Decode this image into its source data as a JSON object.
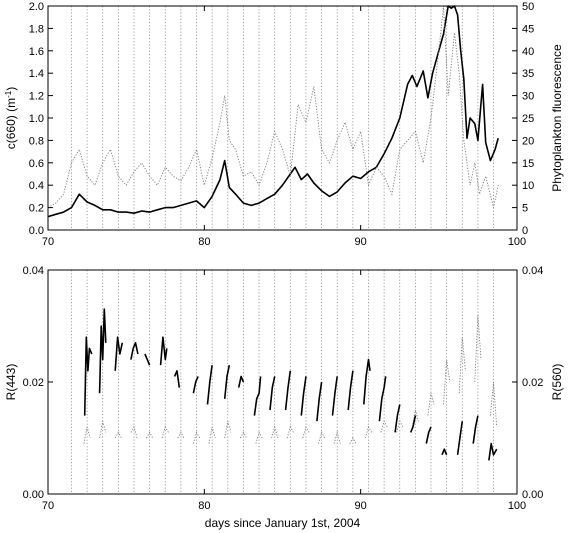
{
  "chart_data": [
    {
      "type": "line",
      "x_label": "",
      "y_label": "c(660) (m",
      "y_label_sup": "-1",
      "y_label_suffix": ")",
      "y2_label": "Phytoplankton fluorescence",
      "xlim": [
        70,
        100
      ],
      "ylim": [
        0,
        2
      ],
      "y2lim": [
        0,
        50
      ],
      "x_ticks": [
        70,
        80,
        90,
        100
      ],
      "y_ticks": [
        "0.0",
        "0.2",
        "0.4",
        "0.6",
        "0.8",
        "1.0",
        "1.2",
        "1.4",
        "1.6",
        "1.8",
        "2.0"
      ],
      "y2_ticks": [
        0,
        5,
        10,
        15,
        20,
        25,
        30,
        35,
        40,
        45,
        50
      ],
      "day_lines": [
        71.5,
        72.5,
        73.5,
        74.5,
        75.5,
        76.5,
        77.5,
        78.5,
        79.5,
        80.5,
        81.5,
        82.5,
        83.5,
        84.5,
        85.5,
        86.5,
        87.5,
        88.5,
        89.5,
        90.5,
        91.5,
        92.5,
        93.5,
        94.5,
        95.5,
        96.5,
        97.5,
        98.5
      ],
      "series": [
        {
          "axis": "left",
          "style": "solid",
          "x": [
            70.0,
            70.5,
            71.0,
            71.5,
            72.0,
            72.5,
            73.0,
            73.5,
            74.0,
            74.5,
            75.0,
            75.5,
            76.0,
            76.5,
            77.0,
            77.5,
            78.0,
            78.5,
            79.0,
            79.5,
            80.0,
            80.5,
            81.0,
            81.3,
            81.6,
            82.0,
            82.5,
            83.0,
            83.5,
            84.0,
            84.5,
            85.0,
            85.5,
            85.8,
            86.2,
            86.6,
            87.0,
            87.5,
            88.0,
            88.5,
            89.0,
            89.5,
            90.0,
            90.5,
            91.0,
            91.5,
            92.0,
            92.5,
            93.0,
            93.3,
            93.6,
            94.0,
            94.3,
            94.6,
            95.0,
            95.3,
            95.6,
            95.8,
            96.0,
            96.2,
            96.4,
            96.6,
            96.8,
            97.0,
            97.3,
            97.5,
            97.8,
            98.0,
            98.3,
            98.6,
            98.8
          ],
          "y": [
            0.12,
            0.14,
            0.16,
            0.2,
            0.32,
            0.25,
            0.22,
            0.18,
            0.18,
            0.16,
            0.16,
            0.15,
            0.17,
            0.16,
            0.18,
            0.2,
            0.2,
            0.22,
            0.24,
            0.26,
            0.2,
            0.3,
            0.45,
            0.62,
            0.38,
            0.32,
            0.24,
            0.22,
            0.24,
            0.28,
            0.32,
            0.4,
            0.5,
            0.56,
            0.45,
            0.5,
            0.42,
            0.35,
            0.3,
            0.34,
            0.42,
            0.48,
            0.46,
            0.52,
            0.56,
            0.68,
            0.82,
            1.0,
            1.3,
            1.38,
            1.28,
            1.42,
            1.18,
            1.4,
            1.6,
            1.75,
            2.0,
            1.98,
            2.0,
            1.92,
            1.6,
            1.35,
            0.82,
            1.0,
            0.95,
            0.8,
            1.3,
            0.78,
            0.62,
            0.72,
            0.82
          ]
        },
        {
          "axis": "right",
          "style": "dotted",
          "x": [
            70.0,
            70.5,
            71.0,
            71.5,
            72.0,
            72.5,
            73.0,
            73.5,
            74.0,
            74.5,
            75.0,
            75.5,
            76.0,
            76.5,
            77.0,
            77.5,
            78.0,
            78.5,
            79.0,
            79.5,
            80.0,
            80.5,
            81.0,
            81.3,
            81.6,
            82.0,
            82.5,
            83.0,
            83.5,
            84.0,
            84.5,
            85.0,
            85.5,
            86.0,
            86.5,
            87.0,
            87.5,
            88.0,
            88.5,
            89.0,
            89.5,
            90.0,
            90.5,
            91.0,
            91.5,
            92.0,
            92.5,
            93.0,
            93.5,
            94.0,
            94.5,
            95.0,
            95.3,
            95.6,
            96.0,
            96.3,
            96.6,
            97.0,
            97.3,
            97.6,
            98.0,
            98.5,
            98.8
          ],
          "y": [
            5,
            6,
            8,
            15,
            18,
            12,
            10,
            15,
            18,
            12,
            10,
            13,
            15,
            12,
            10,
            14,
            12,
            11,
            14,
            18,
            10,
            16,
            24,
            30,
            20,
            18,
            12,
            13,
            10,
            15,
            22,
            18,
            12,
            28,
            24,
            32,
            18,
            15,
            20,
            24,
            18,
            22,
            10,
            14,
            12,
            8,
            18,
            20,
            22,
            15,
            25,
            40,
            50,
            30,
            44,
            35,
            20,
            10,
            15,
            8,
            12,
            5,
            10
          ]
        }
      ]
    },
    {
      "type": "line",
      "x_label": "days since January 1st, 2004",
      "y_label": "R(443)",
      "y2_label": "R(560)",
      "xlim": [
        70,
        100
      ],
      "ylim": [
        0,
        0.04
      ],
      "y2lim": [
        0,
        0.04
      ],
      "x_ticks": [
        70,
        80,
        90,
        100
      ],
      "y_ticks": [
        "0.00",
        "0.02",
        "0.04"
      ],
      "y2_ticks": [
        "0.00",
        "0.02",
        "0.04"
      ],
      "day_lines": [
        71.5,
        72.5,
        73.5,
        74.5,
        75.5,
        76.5,
        77.5,
        78.5,
        79.5,
        80.5,
        81.5,
        82.5,
        83.5,
        84.5,
        85.5,
        86.5,
        87.5,
        88.5,
        89.5,
        90.5,
        91.5,
        92.5,
        93.5,
        94.5,
        95.5,
        96.5,
        97.5,
        98.5
      ],
      "segments_solid": [
        {
          "x": [
            72.35,
            72.45,
            72.55,
            72.65,
            72.8
          ],
          "y": [
            0.014,
            0.028,
            0.022,
            0.026,
            0.025
          ]
        },
        {
          "x": [
            73.3,
            73.4,
            73.5,
            73.6,
            73.7
          ],
          "y": [
            0.018,
            0.03,
            0.024,
            0.033,
            0.027
          ]
        },
        {
          "x": [
            74.3,
            74.45,
            74.6,
            74.75
          ],
          "y": [
            0.022,
            0.028,
            0.025,
            0.027
          ]
        },
        {
          "x": [
            75.3,
            75.45,
            75.6,
            75.75
          ],
          "y": [
            0.024,
            0.026,
            0.027,
            0.025
          ]
        },
        {
          "x": [
            76.2,
            76.35,
            76.5
          ],
          "y": [
            0.025,
            0.024,
            0.023
          ]
        },
        {
          "x": [
            77.2,
            77.35,
            77.5,
            77.6
          ],
          "y": [
            0.023,
            0.028,
            0.024,
            0.026
          ]
        },
        {
          "x": [
            78.1,
            78.25,
            78.4
          ],
          "y": [
            0.021,
            0.022,
            0.019
          ]
        },
        {
          "x": [
            79.3,
            79.45,
            79.6
          ],
          "y": [
            0.018,
            0.02,
            0.021
          ]
        },
        {
          "x": [
            80.2,
            80.35,
            80.5
          ],
          "y": [
            0.016,
            0.02,
            0.023
          ]
        },
        {
          "x": [
            81.3,
            81.45,
            81.6
          ],
          "y": [
            0.017,
            0.021,
            0.023
          ]
        },
        {
          "x": [
            82.2,
            82.35,
            82.5
          ],
          "y": [
            0.019,
            0.021,
            0.02
          ]
        },
        {
          "x": [
            83.2,
            83.35,
            83.5,
            83.6
          ],
          "y": [
            0.014,
            0.017,
            0.018,
            0.021
          ]
        },
        {
          "x": [
            84.2,
            84.35,
            84.5
          ],
          "y": [
            0.015,
            0.019,
            0.021
          ]
        },
        {
          "x": [
            85.2,
            85.35,
            85.5
          ],
          "y": [
            0.015,
            0.019,
            0.022
          ]
        },
        {
          "x": [
            86.2,
            86.35,
            86.5
          ],
          "y": [
            0.014,
            0.018,
            0.021
          ]
        },
        {
          "x": [
            87.2,
            87.35,
            87.5
          ],
          "y": [
            0.013,
            0.017,
            0.02
          ]
        },
        {
          "x": [
            88.2,
            88.35,
            88.5
          ],
          "y": [
            0.014,
            0.018,
            0.021
          ]
        },
        {
          "x": [
            89.2,
            89.35,
            89.5
          ],
          "y": [
            0.015,
            0.019,
            0.022
          ]
        },
        {
          "x": [
            90.2,
            90.35,
            90.5,
            90.6
          ],
          "y": [
            0.016,
            0.021,
            0.024,
            0.022
          ]
        },
        {
          "x": [
            91.2,
            91.35,
            91.5,
            91.6
          ],
          "y": [
            0.013,
            0.017,
            0.019,
            0.021
          ]
        },
        {
          "x": [
            92.2,
            92.35,
            92.5
          ],
          "y": [
            0.011,
            0.014,
            0.016
          ]
        },
        {
          "x": [
            93.2,
            93.35,
            93.5
          ],
          "y": [
            0.011,
            0.012,
            0.014
          ]
        },
        {
          "x": [
            94.2,
            94.35,
            94.5
          ],
          "y": [
            0.009,
            0.011,
            0.012
          ]
        },
        {
          "x": [
            95.2,
            95.35,
            95.5
          ],
          "y": [
            0.007,
            0.008,
            0.007
          ]
        },
        {
          "x": [
            96.2,
            96.35,
            96.5
          ],
          "y": [
            0.007,
            0.01,
            0.013
          ]
        },
        {
          "x": [
            97.2,
            97.35,
            97.5
          ],
          "y": [
            0.009,
            0.012,
            0.014
          ]
        },
        {
          "x": [
            98.2,
            98.35,
            98.5,
            98.7
          ],
          "y": [
            0.006,
            0.009,
            0.007,
            0.008
          ]
        }
      ],
      "segments_dotted": [
        {
          "x": [
            72.3,
            72.5,
            72.7
          ],
          "y": [
            0.009,
            0.012,
            0.01
          ]
        },
        {
          "x": [
            73.3,
            73.5,
            73.7
          ],
          "y": [
            0.01,
            0.013,
            0.011
          ]
        },
        {
          "x": [
            74.3,
            74.5,
            74.7
          ],
          "y": [
            0.01,
            0.011,
            0.01
          ]
        },
        {
          "x": [
            75.3,
            75.5,
            75.7
          ],
          "y": [
            0.011,
            0.012,
            0.01
          ]
        },
        {
          "x": [
            76.3,
            76.5,
            76.7
          ],
          "y": [
            0.01,
            0.011,
            0.01
          ]
        },
        {
          "x": [
            77.3,
            77.5,
            77.7
          ],
          "y": [
            0.01,
            0.012,
            0.011
          ]
        },
        {
          "x": [
            78.3,
            78.5,
            78.7
          ],
          "y": [
            0.01,
            0.011,
            0.01
          ]
        },
        {
          "x": [
            79.3,
            79.5,
            79.7
          ],
          "y": [
            0.009,
            0.011,
            0.01
          ]
        },
        {
          "x": [
            80.3,
            80.5,
            80.7
          ],
          "y": [
            0.009,
            0.012,
            0.01
          ]
        },
        {
          "x": [
            81.3,
            81.5,
            81.7
          ],
          "y": [
            0.01,
            0.013,
            0.011
          ]
        },
        {
          "x": [
            82.3,
            82.5,
            82.7
          ],
          "y": [
            0.01,
            0.011,
            0.01
          ]
        },
        {
          "x": [
            83.3,
            83.5,
            83.7
          ],
          "y": [
            0.009,
            0.011,
            0.01
          ]
        },
        {
          "x": [
            84.3,
            84.5,
            84.7
          ],
          "y": [
            0.01,
            0.012,
            0.01
          ]
        },
        {
          "x": [
            85.3,
            85.5,
            85.7
          ],
          "y": [
            0.01,
            0.012,
            0.011
          ]
        },
        {
          "x": [
            86.3,
            86.5,
            86.7
          ],
          "y": [
            0.01,
            0.012,
            0.011
          ]
        },
        {
          "x": [
            87.3,
            87.5,
            87.7
          ],
          "y": [
            0.009,
            0.011,
            0.01
          ]
        },
        {
          "x": [
            88.3,
            88.5,
            88.7
          ],
          "y": [
            0.009,
            0.011,
            0.009
          ]
        },
        {
          "x": [
            89.3,
            89.5,
            89.7
          ],
          "y": [
            0.009,
            0.01,
            0.009
          ]
        },
        {
          "x": [
            90.3,
            90.5,
            90.7
          ],
          "y": [
            0.01,
            0.012,
            0.011
          ]
        },
        {
          "x": [
            91.3,
            91.5,
            91.7
          ],
          "y": [
            0.011,
            0.013,
            0.012
          ]
        },
        {
          "x": [
            92.3,
            92.5,
            92.7
          ],
          "y": [
            0.011,
            0.013,
            0.012
          ]
        },
        {
          "x": [
            93.3,
            93.5,
            93.7
          ],
          "y": [
            0.012,
            0.015,
            0.013
          ]
        },
        {
          "x": [
            94.3,
            94.5,
            94.7
          ],
          "y": [
            0.014,
            0.018,
            0.016
          ]
        },
        {
          "x": [
            95.3,
            95.5,
            95.7
          ],
          "y": [
            0.016,
            0.024,
            0.02
          ]
        },
        {
          "x": [
            96.3,
            96.5,
            96.7
          ],
          "y": [
            0.018,
            0.028,
            0.022
          ]
        },
        {
          "x": [
            97.3,
            97.5,
            97.7
          ],
          "y": [
            0.02,
            0.032,
            0.024
          ]
        },
        {
          "x": [
            98.3,
            98.5,
            98.7
          ],
          "y": [
            0.014,
            0.02,
            0.012
          ]
        }
      ]
    }
  ]
}
